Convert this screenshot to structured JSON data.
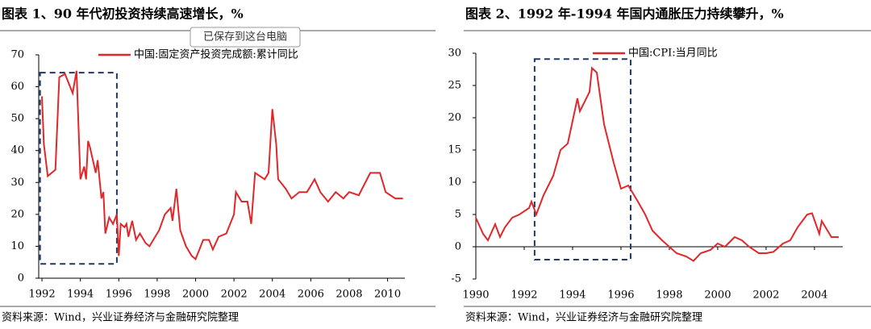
{
  "tooltip": "已保存到这台电脑",
  "chart_data": [
    {
      "type": "line",
      "title": "图表 1、90 年代初投资持续高速增长，%",
      "source": "资料来源：Wind，兴业证券经济与金融研究院整理",
      "x": [
        1992.0,
        1992.1,
        1992.3,
        1992.7,
        1992.9,
        1993.2,
        1993.6,
        1993.8,
        1994.0,
        1994.2,
        1994.3,
        1994.4,
        1994.5,
        1994.8,
        1994.9,
        1995.1,
        1995.2,
        1995.3,
        1995.5,
        1995.7,
        1995.9,
        1996.0,
        1996.1,
        1996.3,
        1996.4,
        1996.5,
        1996.7,
        1996.9,
        1997.1,
        1997.4,
        1997.6,
        1997.8,
        1998.1,
        1998.4,
        1998.7,
        1998.8,
        1999.0,
        1999.2,
        1999.5,
        1999.8,
        2000.0,
        2000.2,
        2000.4,
        2000.7,
        2000.9,
        2001.2,
        2001.6,
        2002.0,
        2002.1,
        2002.4,
        2002.7,
        2002.9,
        2003.1,
        2003.6,
        2003.8,
        2004.0,
        2004.2,
        2004.3,
        2004.7,
        2005.0,
        2005.4,
        2005.8,
        2006.2,
        2006.5,
        2006.9,
        2007.3,
        2007.7,
        2008.0,
        2008.5,
        2009.1,
        2009.6,
        2009.9,
        2010.4,
        2010.8
      ],
      "series": [
        {
          "name": "中国:固定资产投资完成额:累计同比",
          "color": "#e0282b",
          "values": [
            57,
            42,
            32,
            34,
            63,
            64,
            58,
            65,
            31,
            35,
            31,
            43,
            41,
            33,
            37,
            25,
            27,
            14,
            19,
            17,
            20,
            7,
            17,
            16,
            17,
            13,
            18,
            12,
            14,
            11,
            10,
            12,
            15,
            20,
            22,
            18,
            28,
            15,
            10,
            7,
            6,
            9,
            12,
            12,
            9,
            13,
            14,
            20,
            27,
            24,
            24,
            17,
            33,
            31,
            33,
            53,
            42,
            31,
            28,
            25,
            27,
            27,
            31,
            27,
            24,
            27,
            25,
            27,
            26,
            33,
            33,
            27,
            25,
            25
          ]
        }
      ],
      "xlim": [
        1991.83,
        2010.9
      ],
      "ylim": [
        0,
        70
      ],
      "xticks": [
        1992,
        1994,
        1996,
        1998,
        2000,
        2002,
        2004,
        2006,
        2008,
        2010
      ],
      "yticks": [
        0,
        10,
        20,
        30,
        40,
        50,
        60,
        70
      ],
      "highlight": {
        "x": [
          1991.9,
          1995.9
        ],
        "y": [
          4.5,
          64.4
        ]
      }
    },
    {
      "type": "line",
      "title": "图表 2、1992 年-1994 年国内通胀压力持续攀升，%",
      "source": "资料来源：Wind，兴业证券经济与金融研究院整理",
      "x": [
        1990.0,
        1990.3,
        1990.5,
        1990.8,
        1991.0,
        1991.2,
        1991.5,
        1991.8,
        1992.2,
        1992.3,
        1992.5,
        1992.8,
        1993.2,
        1993.5,
        1993.8,
        1994.2,
        1994.3,
        1994.7,
        1994.8,
        1995.0,
        1995.3,
        1995.7,
        1996.0,
        1996.3,
        1996.7,
        1997.0,
        1997.3,
        1997.7,
        1998.0,
        1998.3,
        1998.7,
        1999.0,
        1999.3,
        1999.7,
        2000.0,
        2000.3,
        2000.7,
        2001.0,
        2001.3,
        2001.7,
        2002.0,
        2002.3,
        2002.7,
        2003.0,
        2003.3,
        2003.7,
        2003.9,
        2004.2,
        2004.3,
        2004.7,
        2005.0
      ],
      "series": [
        {
          "name": "中国:CPI:当月同比",
          "color": "#e0282b",
          "values": [
            4.5,
            2,
            1,
            3.5,
            1.5,
            3,
            4.5,
            5,
            6,
            7,
            5,
            8,
            11,
            15,
            16,
            23,
            21,
            24,
            27.7,
            27,
            19,
            13,
            9,
            9.5,
            7,
            5,
            2.5,
            1,
            0,
            -1,
            -1.5,
            -2.2,
            -1,
            -0.5,
            0.5,
            0,
            1.5,
            1,
            0,
            -1,
            -1,
            -0.8,
            0.5,
            1,
            3,
            5,
            5.2,
            2,
            4,
            1.5,
            1.5
          ]
        }
      ],
      "xlim": [
        1990,
        2005.17
      ],
      "ylim": [
        -5,
        30
      ],
      "xticks": [
        1990,
        1992,
        1994,
        1996,
        1998,
        2000,
        2002,
        2004
      ],
      "yticks": [
        -5,
        0,
        5,
        10,
        15,
        20,
        25,
        30
      ],
      "highlight": {
        "x": [
          1992.43,
          1996.4
        ],
        "y": [
          -2,
          29.1
        ]
      }
    }
  ]
}
